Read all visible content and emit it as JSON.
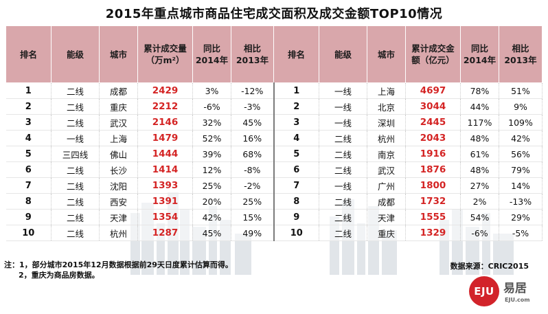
{
  "title": "2015年重点城市商品住宅成交面积及成交金额TOP10情况",
  "headers": {
    "left": [
      "排名",
      "能级",
      "城市",
      "累计成交量\n（万m²）",
      "同比\n2014年",
      "相比\n2013年"
    ],
    "right": [
      "排名",
      "能级",
      "城市",
      "累计成交金\n额（亿元）",
      "同比\n2014年",
      "相比\n2013年"
    ]
  },
  "rows": [
    {
      "l": [
        "1",
        "二线",
        "成都",
        "2429",
        "3%",
        "-12%"
      ],
      "r": [
        "1",
        "一线",
        "上海",
        "4697",
        "78%",
        "51%"
      ]
    },
    {
      "l": [
        "2",
        "二线",
        "重庆",
        "2212",
        "-6%",
        "-3%"
      ],
      "r": [
        "2",
        "一线",
        "北京",
        "3044",
        "44%",
        "9%"
      ]
    },
    {
      "l": [
        "3",
        "二线",
        "武汉",
        "2146",
        "32%",
        "45%"
      ],
      "r": [
        "3",
        "一线",
        "深圳",
        "2445",
        "117%",
        "109%"
      ]
    },
    {
      "l": [
        "4",
        "一线",
        "上海",
        "1479",
        "52%",
        "16%"
      ],
      "r": [
        "4",
        "二线",
        "杭州",
        "2043",
        "48%",
        "42%"
      ]
    },
    {
      "l": [
        "5",
        "三四线",
        "佛山",
        "1444",
        "39%",
        "68%"
      ],
      "r": [
        "5",
        "二线",
        "南京",
        "1916",
        "61%",
        "56%"
      ]
    },
    {
      "l": [
        "6",
        "二线",
        "长沙",
        "1414",
        "12%",
        "-8%"
      ],
      "r": [
        "6",
        "二线",
        "武汉",
        "1876",
        "48%",
        "79%"
      ]
    },
    {
      "l": [
        "7",
        "二线",
        "沈阳",
        "1393",
        "25%",
        "-2%"
      ],
      "r": [
        "7",
        "一线",
        "广州",
        "1800",
        "27%",
        "14%"
      ]
    },
    {
      "l": [
        "8",
        "二线",
        "西安",
        "1391",
        "20%",
        "25%"
      ],
      "r": [
        "8",
        "二线",
        "成都",
        "1732",
        "2%",
        "-13%"
      ]
    },
    {
      "l": [
        "9",
        "二线",
        "天津",
        "1354",
        "42%",
        "15%"
      ],
      "r": [
        "9",
        "二线",
        "天津",
        "1555",
        "54%",
        "29%"
      ]
    },
    {
      "l": [
        "10",
        "二线",
        "杭州",
        "1287",
        "45%",
        "49%"
      ],
      "r": [
        "10",
        "二线",
        "重庆",
        "1329",
        "-6%",
        "-5%"
      ]
    }
  ],
  "notes": {
    "line1": "注：1，部分城市2015年12月数据根据前29天日度累计估算而得。",
    "line2": "2，重庆为商品房数据。"
  },
  "source": "数据来源：CRIC2015",
  "logo": {
    "mark": "EJU",
    "text": "易居",
    "url": "EJU.com"
  },
  "colors": {
    "header": "#d9a7ab",
    "value_red": "#d42424",
    "logo_red": "#d2232a"
  }
}
